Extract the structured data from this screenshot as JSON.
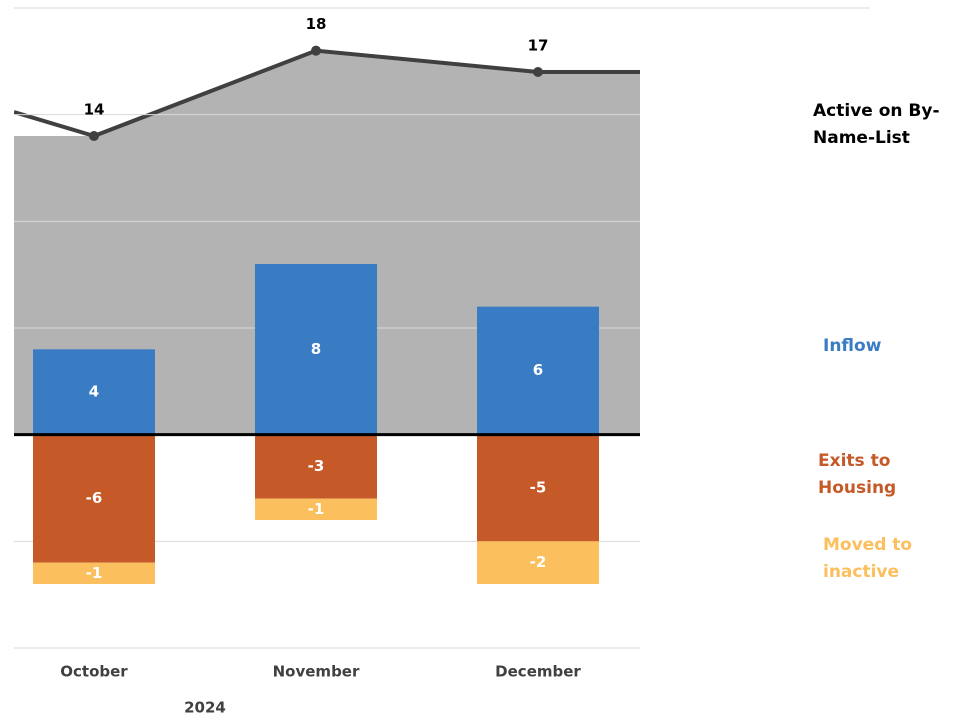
{
  "chart_data": {
    "type": "combo",
    "categories": [
      "October",
      "November",
      "December"
    ],
    "year_label": "2024",
    "ylim": [
      -10,
      20
    ],
    "yticks": [
      -10,
      -5,
      0,
      5,
      10,
      15,
      20
    ],
    "grid": true,
    "series": [
      {
        "name": "Active on By-Name-List",
        "kind": "area",
        "color": "#b3b3b3",
        "line_color": "#404040",
        "values": [
          14,
          18,
          17
        ]
      },
      {
        "name": "Inflow",
        "kind": "bar",
        "color": "#3a7cc4",
        "values": [
          4,
          8,
          6
        ]
      },
      {
        "name": "Exits to Housing",
        "kind": "bar",
        "color": "#c55a28",
        "values": [
          -6,
          -3,
          -5
        ]
      },
      {
        "name": "Moved to inactive",
        "kind": "bar",
        "color": "#fbbf5e",
        "values": [
          -1,
          -1,
          -2
        ]
      }
    ]
  }
}
